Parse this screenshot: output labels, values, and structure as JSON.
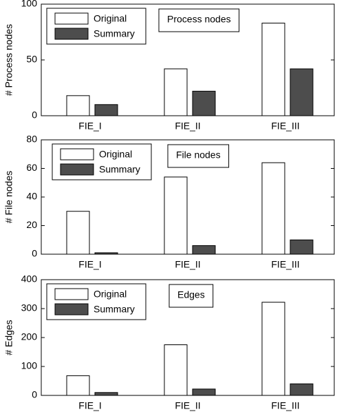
{
  "chart_data": [
    {
      "type": "bar",
      "ylabel": "# Process nodes",
      "annotation": "Process nodes",
      "legend": "upper left",
      "categories": [
        "FIE_I",
        "FIE_II",
        "FIE_III"
      ],
      "series": [
        {
          "name": "Original",
          "color": "#ffffff",
          "values": [
            18,
            42,
            83
          ]
        },
        {
          "name": "Summary",
          "color": "#4d4d4d",
          "values": [
            10,
            22,
            42
          ]
        }
      ],
      "ylim": [
        0,
        100
      ],
      "yticks": [
        0,
        50,
        100
      ]
    },
    {
      "type": "bar",
      "ylabel": "# File nodes",
      "annotation": "File nodes",
      "legend": "upper left",
      "categories": [
        "FIE_I",
        "FIE_II",
        "FIE_III"
      ],
      "series": [
        {
          "name": "Original",
          "color": "#ffffff",
          "values": [
            30,
            54,
            64
          ]
        },
        {
          "name": "Summary",
          "color": "#4d4d4d",
          "values": [
            1,
            6,
            10
          ]
        }
      ],
      "ylim": [
        0,
        80
      ],
      "yticks": [
        0,
        20,
        40,
        60,
        80
      ]
    },
    {
      "type": "bar",
      "ylabel": "# Edges",
      "annotation": "Edges",
      "legend": "upper left",
      "categories": [
        "FIE_I",
        "FIE_II",
        "FIE_III"
      ],
      "series": [
        {
          "name": "Original",
          "color": "#ffffff",
          "values": [
            68,
            175,
            322
          ]
        },
        {
          "name": "Summary",
          "color": "#4d4d4d",
          "values": [
            10,
            22,
            40
          ]
        }
      ],
      "ylim": [
        0,
        400
      ],
      "yticks": [
        0,
        100,
        200,
        300,
        400
      ]
    }
  ]
}
